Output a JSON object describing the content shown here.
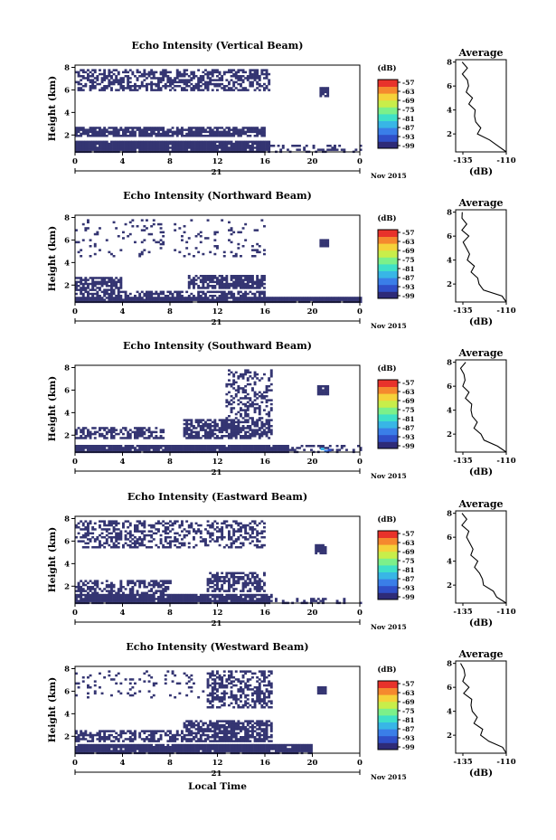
{
  "figure": {
    "shared_xlabel": "Local Time",
    "date_tick_label": "21",
    "date_suffix": "Nov 2015",
    "ylabel": "Height (km)",
    "colorbar_unit": "(dB)",
    "colorbar_ticks": [
      "-57",
      "-63",
      "-69",
      "-75",
      "-81",
      "-87",
      "-93",
      "-99"
    ],
    "colorbar_colors": [
      "#2e2b78",
      "#2f4fc8",
      "#3a7ee8",
      "#38b6e6",
      "#3fe0c8",
      "#7cf08a",
      "#c8ee4a",
      "#f5d23a",
      "#f5892e",
      "#e8322b"
    ],
    "echo_color": "#343572",
    "avg_title": "Average",
    "avg_xlabel": "(dB)",
    "avg_xticks": [
      "-135",
      "-110"
    ],
    "avg_yticks": [
      "2",
      "4",
      "6",
      "8"
    ],
    "heat_xticks": [
      "0",
      "4",
      "8",
      "12",
      "16",
      "20",
      "0"
    ],
    "heat_yticks": [
      "2",
      "4",
      "6",
      "8"
    ]
  },
  "chart_data": [
    {
      "type": "heatmap",
      "title": "Echo Intensity (Vertical Beam)",
      "x_range_hours": [
        0,
        24
      ],
      "y_range_km": [
        0.5,
        8.2
      ],
      "average_profile": {
        "height_km": [
          0.5,
          1,
          1.5,
          2,
          2.5,
          3,
          3.5,
          4,
          4.5,
          5,
          5.5,
          6,
          6.5,
          7,
          7.5,
          8
        ],
        "intensity_db": [
          -110,
          -114,
          -121,
          -125,
          -126,
          -127,
          -128,
          -129,
          -130,
          -131,
          -132,
          -132,
          -133,
          -134,
          -134,
          -134
        ]
      }
    },
    {
      "type": "heatmap",
      "title": "Echo Intensity (Northward Beam)",
      "x_range_hours": [
        0,
        24
      ],
      "y_range_km": [
        0.5,
        8.2
      ],
      "average_profile": {
        "height_km": [
          0.5,
          1,
          1.5,
          2,
          2.5,
          3,
          3.5,
          4,
          4.5,
          5,
          5.5,
          6,
          6.5,
          7,
          7.5,
          8
        ],
        "intensity_db": [
          -110,
          -114,
          -122,
          -126,
          -127,
          -129,
          -130,
          -131,
          -132,
          -133,
          -134,
          -133,
          -134,
          -134,
          -135,
          -135
        ]
      }
    },
    {
      "type": "heatmap",
      "title": "Echo Intensity (Southward Beam)",
      "x_range_hours": [
        0,
        24
      ],
      "y_range_km": [
        0.5,
        8.2
      ],
      "average_profile": {
        "height_km": [
          0.5,
          1,
          1.5,
          2,
          2.5,
          3,
          3.5,
          4,
          4.5,
          5,
          5.5,
          6,
          6.5,
          7,
          7.5,
          8
        ],
        "intensity_db": [
          -110,
          -115,
          -122,
          -126,
          -127,
          -128,
          -129,
          -130,
          -131,
          -132,
          -133,
          -134,
          -134,
          -135,
          -135,
          -135
        ]
      }
    },
    {
      "type": "heatmap",
      "title": "Echo Intensity (Eastward Beam)",
      "x_range_hours": [
        0,
        24
      ],
      "y_range_km": [
        0.5,
        8.2
      ],
      "average_profile": {
        "height_km": [
          0.5,
          1,
          1.5,
          2,
          2.5,
          3,
          3.5,
          4,
          4.5,
          5,
          5.5,
          6,
          6.5,
          7,
          7.5,
          8
        ],
        "intensity_db": [
          -110,
          -114,
          -119,
          -122,
          -124,
          -126,
          -127,
          -128,
          -129,
          -130,
          -131,
          -132,
          -133,
          -134,
          -134,
          -135
        ]
      }
    },
    {
      "type": "heatmap",
      "title": "Echo Intensity (Westward Beam)",
      "x_range_hours": [
        0,
        24
      ],
      "y_range_km": [
        0.5,
        8.2
      ],
      "average_profile": {
        "height_km": [
          0.5,
          1,
          1.5,
          2,
          2.5,
          3,
          3.5,
          4,
          4.5,
          5,
          5.5,
          6,
          6.5,
          7,
          7.5,
          8
        ],
        "intensity_db": [
          -110,
          -113,
          -120,
          -124,
          -125,
          -127,
          -128,
          -129,
          -130,
          -131,
          -133,
          -133,
          -134,
          -134,
          -135,
          -135
        ]
      }
    }
  ]
}
